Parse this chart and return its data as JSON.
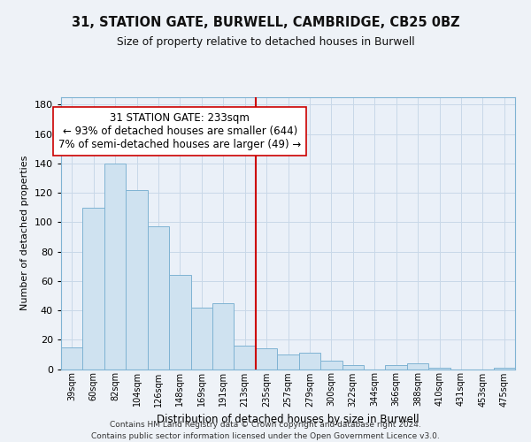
{
  "title": "31, STATION GATE, BURWELL, CAMBRIDGE, CB25 0BZ",
  "subtitle": "Size of property relative to detached houses in Burwell",
  "xlabel": "Distribution of detached houses by size in Burwell",
  "ylabel": "Number of detached properties",
  "bar_labels": [
    "39sqm",
    "60sqm",
    "82sqm",
    "104sqm",
    "126sqm",
    "148sqm",
    "169sqm",
    "191sqm",
    "213sqm",
    "235sqm",
    "257sqm",
    "279sqm",
    "300sqm",
    "322sqm",
    "344sqm",
    "366sqm",
    "388sqm",
    "410sqm",
    "431sqm",
    "453sqm",
    "475sqm"
  ],
  "bar_values": [
    15,
    110,
    140,
    122,
    97,
    64,
    42,
    45,
    16,
    14,
    10,
    11,
    6,
    3,
    0,
    3,
    4,
    1,
    0,
    0,
    1
  ],
  "bar_color": "#cfe2f0",
  "bar_edge_color": "#7fb3d3",
  "marker_label": "31 STATION GATE: 233sqm",
  "annotation_line1": "← 93% of detached houses are smaller (644)",
  "annotation_line2": "7% of semi-detached houses are larger (49) →",
  "marker_line_color": "#cc0000",
  "ylim": [
    0,
    185
  ],
  "yticks": [
    0,
    20,
    40,
    60,
    80,
    100,
    120,
    140,
    160,
    180
  ],
  "background_color": "#eef2f7",
  "plot_background": "#eaf0f8",
  "footer_line1": "Contains HM Land Registry data © Crown copyright and database right 2024.",
  "footer_line2": "Contains public sector information licensed under the Open Government Licence v3.0.",
  "annotation_box_color": "#ffffff",
  "annotation_box_edge": "#cc0000",
  "grid_color": "#c8d8e8"
}
